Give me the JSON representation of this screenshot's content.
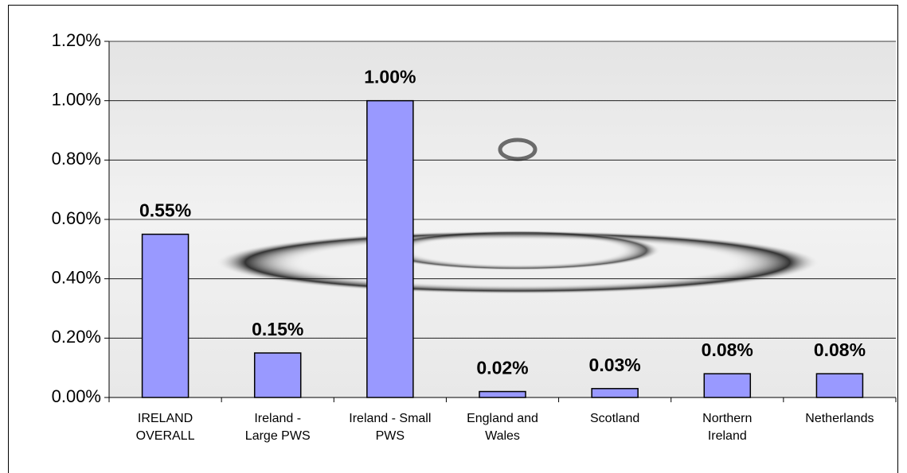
{
  "chart_data": {
    "type": "bar",
    "categories": [
      "IRELAND OVERALL",
      "Ireland - Large PWS",
      "Ireland - Small PWS",
      "England and Wales",
      "Scotland",
      "Northern Ireland",
      "Netherlands"
    ],
    "values": [
      0.55,
      0.15,
      1.0,
      0.02,
      0.03,
      0.08,
      0.08
    ],
    "value_labels": [
      "0.55%",
      "0.15%",
      "1.00%",
      "0.02%",
      "0.03%",
      "0.08%",
      "0.08%"
    ],
    "color": "#9999ff",
    "ylim": [
      0,
      1.2
    ],
    "yticks": [
      {
        "value": 0,
        "label": "0.00%"
      },
      {
        "value": 0.2,
        "label": "0.20%"
      },
      {
        "value": 0.4,
        "label": "0.40%"
      },
      {
        "value": 0.6,
        "label": "0.60%"
      },
      {
        "value": 0.8,
        "label": "0.80%"
      },
      {
        "value": 1.0,
        "label": "1.00%"
      },
      {
        "value": 1.2,
        "label": "1.20%"
      }
    ],
    "grid": true
  }
}
